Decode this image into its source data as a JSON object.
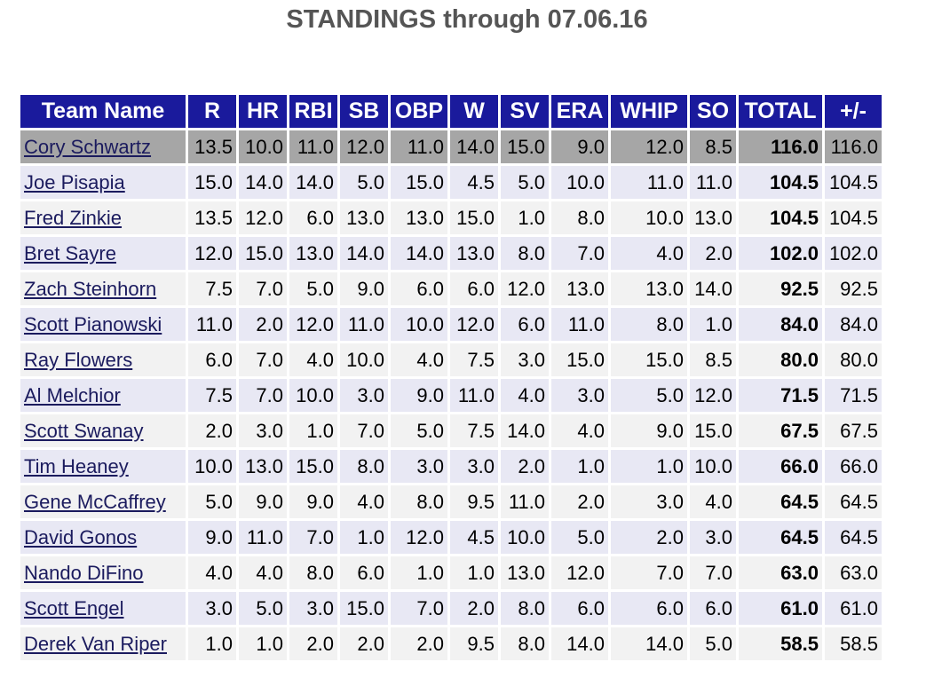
{
  "page": {
    "title": "STANDINGS through 07.06.16"
  },
  "colors": {
    "header_bg": "#1a1a9c",
    "header_text": "#ffffff",
    "leader_row_bg": "#a6a6a6",
    "row_bg_a": "#e8e8f4",
    "row_bg_b": "#f2f2f2",
    "team_link": "#1b1b5e"
  },
  "table": {
    "columns": [
      "Team Name",
      "R",
      "HR",
      "RBI",
      "SB",
      "OBP",
      "W",
      "SV",
      "ERA",
      "WHIP",
      "SO",
      "TOTAL",
      "+/-"
    ],
    "rows": [
      {
        "team": "Cory Schwartz",
        "values": [
          "13.5",
          "10.0",
          "11.0",
          "12.0",
          "11.0",
          "14.0",
          "15.0",
          "9.0",
          "12.0",
          "8.5"
        ],
        "total": "116.0",
        "diff": "116.0"
      },
      {
        "team": "Joe Pisapia",
        "values": [
          "15.0",
          "14.0",
          "14.0",
          "5.0",
          "15.0",
          "4.5",
          "5.0",
          "10.0",
          "11.0",
          "11.0"
        ],
        "total": "104.5",
        "diff": "104.5"
      },
      {
        "team": "Fred Zinkie",
        "values": [
          "13.5",
          "12.0",
          "6.0",
          "13.0",
          "13.0",
          "15.0",
          "1.0",
          "8.0",
          "10.0",
          "13.0"
        ],
        "total": "104.5",
        "diff": "104.5"
      },
      {
        "team": "Bret Sayre",
        "values": [
          "12.0",
          "15.0",
          "13.0",
          "14.0",
          "14.0",
          "13.0",
          "8.0",
          "7.0",
          "4.0",
          "2.0"
        ],
        "total": "102.0",
        "diff": "102.0"
      },
      {
        "team": "Zach Steinhorn",
        "values": [
          "7.5",
          "7.0",
          "5.0",
          "9.0",
          "6.0",
          "6.0",
          "12.0",
          "13.0",
          "13.0",
          "14.0"
        ],
        "total": "92.5",
        "diff": "92.5"
      },
      {
        "team": "Scott Pianowski",
        "values": [
          "11.0",
          "2.0",
          "12.0",
          "11.0",
          "10.0",
          "12.0",
          "6.0",
          "11.0",
          "8.0",
          "1.0"
        ],
        "total": "84.0",
        "diff": "84.0"
      },
      {
        "team": "Ray Flowers",
        "values": [
          "6.0",
          "7.0",
          "4.0",
          "10.0",
          "4.0",
          "7.5",
          "3.0",
          "15.0",
          "15.0",
          "8.5"
        ],
        "total": "80.0",
        "diff": "80.0"
      },
      {
        "team": "Al Melchior",
        "values": [
          "7.5",
          "7.0",
          "10.0",
          "3.0",
          "9.0",
          "11.0",
          "4.0",
          "3.0",
          "5.0",
          "12.0"
        ],
        "total": "71.5",
        "diff": "71.5"
      },
      {
        "team": "Scott Swanay",
        "values": [
          "2.0",
          "3.0",
          "1.0",
          "7.0",
          "5.0",
          "7.5",
          "14.0",
          "4.0",
          "9.0",
          "15.0"
        ],
        "total": "67.5",
        "diff": "67.5"
      },
      {
        "team": "Tim Heaney",
        "values": [
          "10.0",
          "13.0",
          "15.0",
          "8.0",
          "3.0",
          "3.0",
          "2.0",
          "1.0",
          "1.0",
          "10.0"
        ],
        "total": "66.0",
        "diff": "66.0"
      },
      {
        "team": "Gene McCaffrey",
        "values": [
          "5.0",
          "9.0",
          "9.0",
          "4.0",
          "8.0",
          "9.5",
          "11.0",
          "2.0",
          "3.0",
          "4.0"
        ],
        "total": "64.5",
        "diff": "64.5"
      },
      {
        "team": "David Gonos",
        "values": [
          "9.0",
          "11.0",
          "7.0",
          "1.0",
          "12.0",
          "4.5",
          "10.0",
          "5.0",
          "2.0",
          "3.0"
        ],
        "total": "64.5",
        "diff": "64.5"
      },
      {
        "team": "Nando DiFino",
        "values": [
          "4.0",
          "4.0",
          "8.0",
          "6.0",
          "1.0",
          "1.0",
          "13.0",
          "12.0",
          "7.0",
          "7.0"
        ],
        "total": "63.0",
        "diff": "63.0"
      },
      {
        "team": "Scott Engel",
        "values": [
          "3.0",
          "5.0",
          "3.0",
          "15.0",
          "7.0",
          "2.0",
          "8.0",
          "6.0",
          "6.0",
          "6.0"
        ],
        "total": "61.0",
        "diff": "61.0"
      },
      {
        "team": "Derek Van Riper",
        "values": [
          "1.0",
          "1.0",
          "2.0",
          "2.0",
          "2.0",
          "9.5",
          "8.0",
          "14.0",
          "14.0",
          "5.0"
        ],
        "total": "58.5",
        "diff": "58.5"
      }
    ]
  }
}
